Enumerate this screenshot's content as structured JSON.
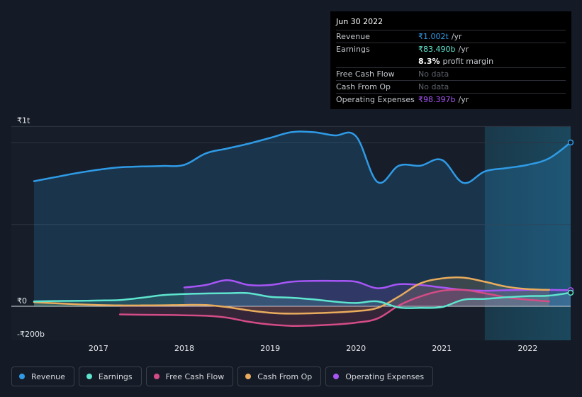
{
  "tooltip": {
    "date": "Jun 30 2022",
    "rows": [
      {
        "label": "Revenue",
        "value": "₹1.002t",
        "unit": "/yr"
      },
      {
        "label": "Earnings",
        "value": "₹83.490b",
        "unit": "/yr"
      },
      {
        "label": "",
        "value": "8.3%",
        "unit": "profit margin"
      },
      {
        "label": "Free Cash Flow",
        "value": "No data",
        "unit": ""
      },
      {
        "label": "Cash From Op",
        "value": "No data",
        "unit": ""
      },
      {
        "label": "Operating Expenses",
        "value": "₹98.397b",
        "unit": "/yr"
      }
    ]
  },
  "legend": [
    {
      "label": "Revenue",
      "color": "#2f9be6"
    },
    {
      "label": "Earnings",
      "color": "#5ee5cf"
    },
    {
      "label": "Free Cash Flow",
      "color": "#d44c86"
    },
    {
      "label": "Cash From Op",
      "color": "#e9ac5d"
    },
    {
      "label": "Operating Expenses",
      "color": "#a855f7"
    }
  ],
  "chart_data": {
    "type": "line",
    "y_tick_labels": [
      "₹1t",
      "₹0",
      "-₹200b"
    ],
    "y_ticks": [
      1000,
      0,
      -200
    ],
    "ylim": [
      -200,
      1100
    ],
    "x_tick_labels": [
      "2017",
      "2018",
      "2019",
      "2020",
      "2021",
      "2022"
    ],
    "x_ticks": [
      2017,
      2018,
      2019,
      2020,
      2021,
      2022
    ],
    "xlim": [
      2016.25,
      2022.5
    ],
    "highlight_start": 2021.5,
    "grid": "horizontal",
    "series": [
      {
        "name": "Revenue",
        "color": "#2f9be6",
        "fill": true,
        "x": [
          2016.25,
          2016.5,
          2016.75,
          2017.0,
          2017.25,
          2017.5,
          2017.75,
          2018.0,
          2018.25,
          2018.5,
          2018.75,
          2019.0,
          2019.25,
          2019.5,
          2019.75,
          2020.0,
          2020.25,
          2020.5,
          2020.75,
          2021.0,
          2021.25,
          2021.5,
          2021.75,
          2022.0,
          2022.25,
          2022.5
        ],
        "y": [
          765,
          790,
          815,
          835,
          850,
          855,
          858,
          865,
          935,
          965,
          995,
          1030,
          1065,
          1065,
          1045,
          1040,
          760,
          860,
          860,
          895,
          755,
          825,
          845,
          865,
          905,
          1002
        ]
      },
      {
        "name": "Earnings",
        "color": "#5ee5cf",
        "fill": true,
        "x": [
          2016.25,
          2016.5,
          2016.75,
          2017.0,
          2017.25,
          2017.5,
          2017.75,
          2018.0,
          2018.25,
          2018.5,
          2018.75,
          2019.0,
          2019.25,
          2019.5,
          2019.75,
          2020.0,
          2020.25,
          2020.5,
          2020.75,
          2021.0,
          2021.25,
          2021.5,
          2021.75,
          2022.0,
          2022.25,
          2022.5
        ],
        "y": [
          30,
          32,
          33,
          35,
          38,
          52,
          68,
          75,
          78,
          80,
          80,
          58,
          52,
          42,
          28,
          20,
          30,
          -8,
          -10,
          -5,
          40,
          45,
          55,
          62,
          65,
          83
        ]
      },
      {
        "name": "Free Cash Flow",
        "color": "#d44c86",
        "fill": true,
        "x": [
          2017.25,
          2017.5,
          2017.75,
          2018.0,
          2018.25,
          2018.5,
          2018.75,
          2019.0,
          2019.25,
          2019.5,
          2019.75,
          2020.0,
          2020.25,
          2020.5,
          2020.75,
          2021.0,
          2021.25,
          2021.5,
          2021.75,
          2022.0,
          2022.25
        ],
        "y": [
          -50,
          -52,
          -53,
          -55,
          -58,
          -70,
          -95,
          -112,
          -120,
          -118,
          -112,
          -100,
          -75,
          5,
          60,
          95,
          100,
          80,
          55,
          40,
          30
        ]
      },
      {
        "name": "Cash From Op",
        "color": "#e9ac5d",
        "fill": true,
        "x": [
          2016.25,
          2016.5,
          2016.75,
          2017.0,
          2017.25,
          2017.5,
          2017.75,
          2018.0,
          2018.25,
          2018.5,
          2018.75,
          2019.0,
          2019.25,
          2019.5,
          2019.75,
          2020.0,
          2020.25,
          2020.5,
          2020.75,
          2021.0,
          2021.25,
          2021.5,
          2021.75,
          2022.0,
          2022.25
        ],
        "y": [
          25,
          18,
          12,
          8,
          5,
          5,
          6,
          8,
          8,
          -5,
          -25,
          -40,
          -45,
          -43,
          -38,
          -30,
          -10,
          60,
          140,
          170,
          175,
          150,
          120,
          105,
          100
        ]
      },
      {
        "name": "Operating Expenses",
        "color": "#a855f7",
        "fill": true,
        "x": [
          2018.0,
          2018.25,
          2018.5,
          2018.75,
          2019.0,
          2019.25,
          2019.5,
          2019.75,
          2020.0,
          2020.25,
          2020.5,
          2020.75,
          2021.0,
          2021.25,
          2021.5,
          2021.75,
          2022.0,
          2022.25,
          2022.5
        ],
        "y": [
          115,
          130,
          160,
          130,
          130,
          150,
          155,
          155,
          150,
          110,
          135,
          130,
          115,
          100,
          95,
          98,
          100,
          100,
          98
        ]
      }
    ]
  }
}
